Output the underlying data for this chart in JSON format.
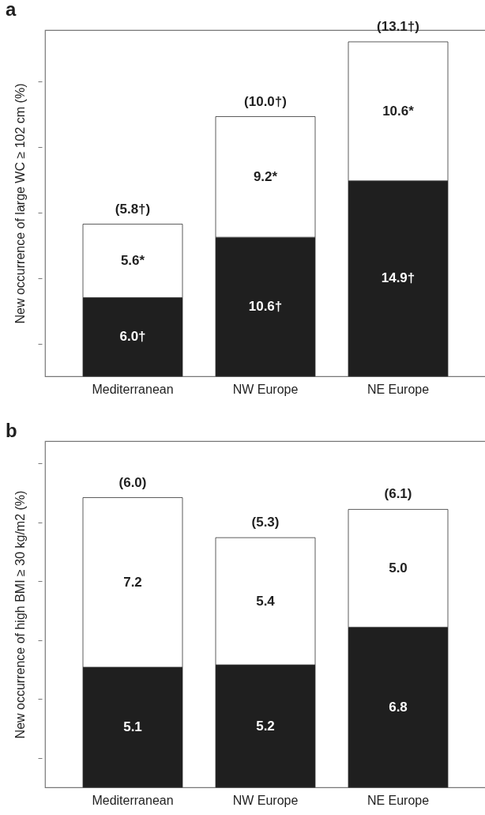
{
  "chart_data": [
    {
      "type": "bar",
      "title": "a",
      "ylabel": "New occurrence of large WC ≥ 102 cm (%)",
      "categories": [
        "Mediterranean",
        "NW Europe",
        "NE Europe"
      ],
      "stacked": true,
      "tick_labels": "x",
      "ylim": [
        0,
        26.4
      ],
      "yticks": [
        {
          "value": 2.5,
          "label": null
        },
        {
          "value": 7.5,
          "label": null
        },
        {
          "value": 12.5,
          "label": null
        },
        {
          "value": 17.5,
          "label": null
        },
        {
          "value": 22.5,
          "label": null
        }
      ],
      "series": [
        {
          "color": "#1f1f1f",
          "values": [
            6.0,
            10.6,
            14.9
          ],
          "value_labels": [
            "6.0†",
            "10.6†",
            "14.9†"
          ]
        },
        {
          "color": "#ffffff",
          "values": [
            5.6,
            9.2,
            10.6
          ],
          "value_labels": [
            "5.6*",
            "9.2*",
            "10.6*"
          ]
        }
      ],
      "annotations": [
        {
          "text": "(5.8†)",
          "x": "Mediterranean",
          "y": 11.6
        },
        {
          "text": "(10.0†)",
          "x": "NW Europe",
          "y": 19.8
        },
        {
          "text": "(13.1†)",
          "x": "NE Europe",
          "y": 25.5
        }
      ]
    },
    {
      "type": "bar",
      "title": "b",
      "ylabel": "New occurrence of high BMI ≥ 30 kg/m2 (%)",
      "categories": [
        "Mediterranean",
        "NW Europe",
        "NE Europe"
      ],
      "stacked": true,
      "tick_labels": "x",
      "ylim": [
        0,
        14.7
      ],
      "yticks": [
        {
          "value": 1.25,
          "label": null
        },
        {
          "value": 3.75,
          "label": null
        },
        {
          "value": 6.25,
          "label": null
        },
        {
          "value": 8.75,
          "label": null
        },
        {
          "value": 11.25,
          "label": null
        },
        {
          "value": 13.75,
          "label": null
        }
      ],
      "series": [
        {
          "color": "#1f1f1f",
          "values": [
            5.1,
            5.2,
            6.8
          ],
          "value_labels": [
            "5.1",
            "5.2",
            "6.8"
          ]
        },
        {
          "color": "#ffffff",
          "values": [
            7.2,
            5.4,
            5.0
          ],
          "value_labels": [
            "7.2",
            "5.4",
            "5.0"
          ]
        }
      ],
      "annotations": [
        {
          "text": "(6.0)",
          "x": "Mediterranean",
          "y": 12.3
        },
        {
          "text": "(5.3)",
          "x": "NW Europe",
          "y": 10.6
        },
        {
          "text": "(6.1)",
          "x": "NE Europe",
          "y": 11.8
        }
      ]
    }
  ]
}
